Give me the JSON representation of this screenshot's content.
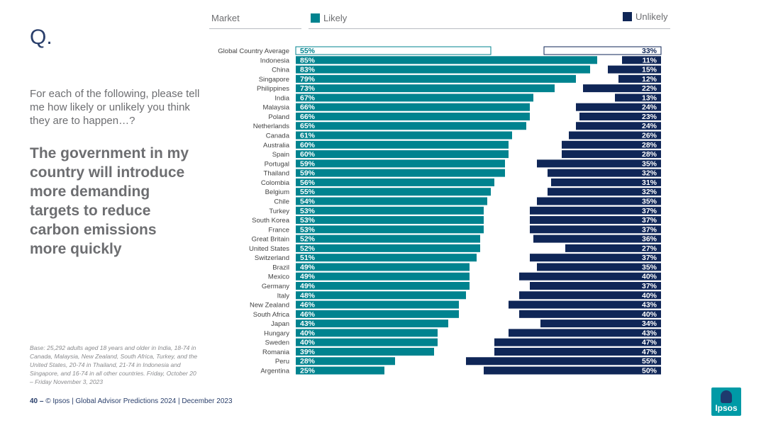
{
  "slide": {
    "q_mark": "Q.",
    "intro": "For each of the following, please tell me how likely or unlikely you think they are to happen…?",
    "headline": "The government in my country will introduce more demanding targets to reduce carbon emissions more quickly",
    "base_note": "Base: 25,292 adults aged 18 years and older in India, 18-74 in Canada, Malaysia, New Zealand, South Africa, Turkey, and the United States, 20-74 in Thailand, 21-74 in Indonesia and Singapore, and 16-74 in all other countries. Friday, October 20 – Friday November 3, 2023",
    "footer_page": "40 –",
    "footer_text": "© Ipsos | Global Advisor Predictions 2024 | December 2023",
    "logo_text": "Ipsos"
  },
  "colors": {
    "likely": "#00838f",
    "unlikely": "#0f2657"
  },
  "chart_data": {
    "type": "bar",
    "title": "The government in my country will introduce more demanding targets to reduce carbon emissions more quickly",
    "category_header": "Market",
    "categories": [
      "Global Country Average",
      "Indonesia",
      "China",
      "Singapore",
      "Philippines",
      "India",
      "Malaysia",
      "Poland",
      "Netherlands",
      "Canada",
      "Australia",
      "Spain",
      "Portugal",
      "Thailand",
      "Colombia",
      "Belgium",
      "Chile",
      "Turkey",
      "South Korea",
      "France",
      "Great Britain",
      "United States",
      "Switzerland",
      "Brazil",
      "Mexico",
      "Germany",
      "Italy",
      "New Zealand",
      "South Africa",
      "Japan",
      "Hungary",
      "Sweden",
      "Romania",
      "Peru",
      "Argentina"
    ],
    "series": [
      {
        "name": "Likely",
        "values": [
          55,
          85,
          83,
          79,
          73,
          67,
          66,
          66,
          65,
          61,
          60,
          60,
          59,
          59,
          56,
          55,
          54,
          53,
          53,
          53,
          52,
          52,
          51,
          49,
          49,
          49,
          48,
          46,
          46,
          43,
          40,
          40,
          39,
          28,
          25
        ]
      },
      {
        "name": "Unlikely",
        "values": [
          33,
          11,
          15,
          12,
          22,
          13,
          24,
          23,
          24,
          26,
          28,
          28,
          35,
          32,
          31,
          32,
          35,
          37,
          37,
          37,
          36,
          27,
          37,
          35,
          40,
          37,
          40,
          43,
          40,
          34,
          43,
          47,
          47,
          55,
          50
        ]
      }
    ],
    "value_suffix": "%",
    "xlim": [
      0,
      100
    ],
    "highlight_first": true
  }
}
